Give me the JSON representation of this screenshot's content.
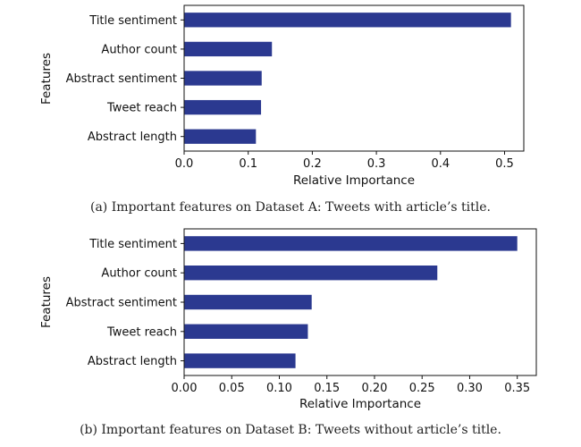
{
  "chart_data": [
    {
      "type": "bar",
      "orientation": "horizontal",
      "categories": [
        "Title sentiment",
        "Author count",
        "Abstract sentiment",
        "Tweet reach",
        "Abstract length"
      ],
      "values": [
        0.51,
        0.137,
        0.121,
        0.12,
        0.112
      ],
      "xlabel": "Relative Importance",
      "ylabel": "Features",
      "xlim": [
        0,
        0.53
      ],
      "xticks": [
        "0.0",
        "0.1",
        "0.2",
        "0.3",
        "0.4",
        "0.5"
      ],
      "bar_color": "#2b3990",
      "grid": false,
      "caption": "(a) Important features on Dataset A: Tweets with article’s title."
    },
    {
      "type": "bar",
      "orientation": "horizontal",
      "categories": [
        "Title sentiment",
        "Author count",
        "Abstract sentiment",
        "Tweet reach",
        "Abstract length"
      ],
      "values": [
        0.35,
        0.266,
        0.134,
        0.13,
        0.117
      ],
      "xlabel": "Relative Importance",
      "ylabel": "Features",
      "xlim": [
        0,
        0.37
      ],
      "xticks": [
        "0.00",
        "0.05",
        "0.10",
        "0.15",
        "0.20",
        "0.25",
        "0.30",
        "0.35"
      ],
      "bar_color": "#2b3990",
      "grid": false,
      "caption": "(b) Important features on Dataset B: Tweets without article’s title."
    }
  ]
}
